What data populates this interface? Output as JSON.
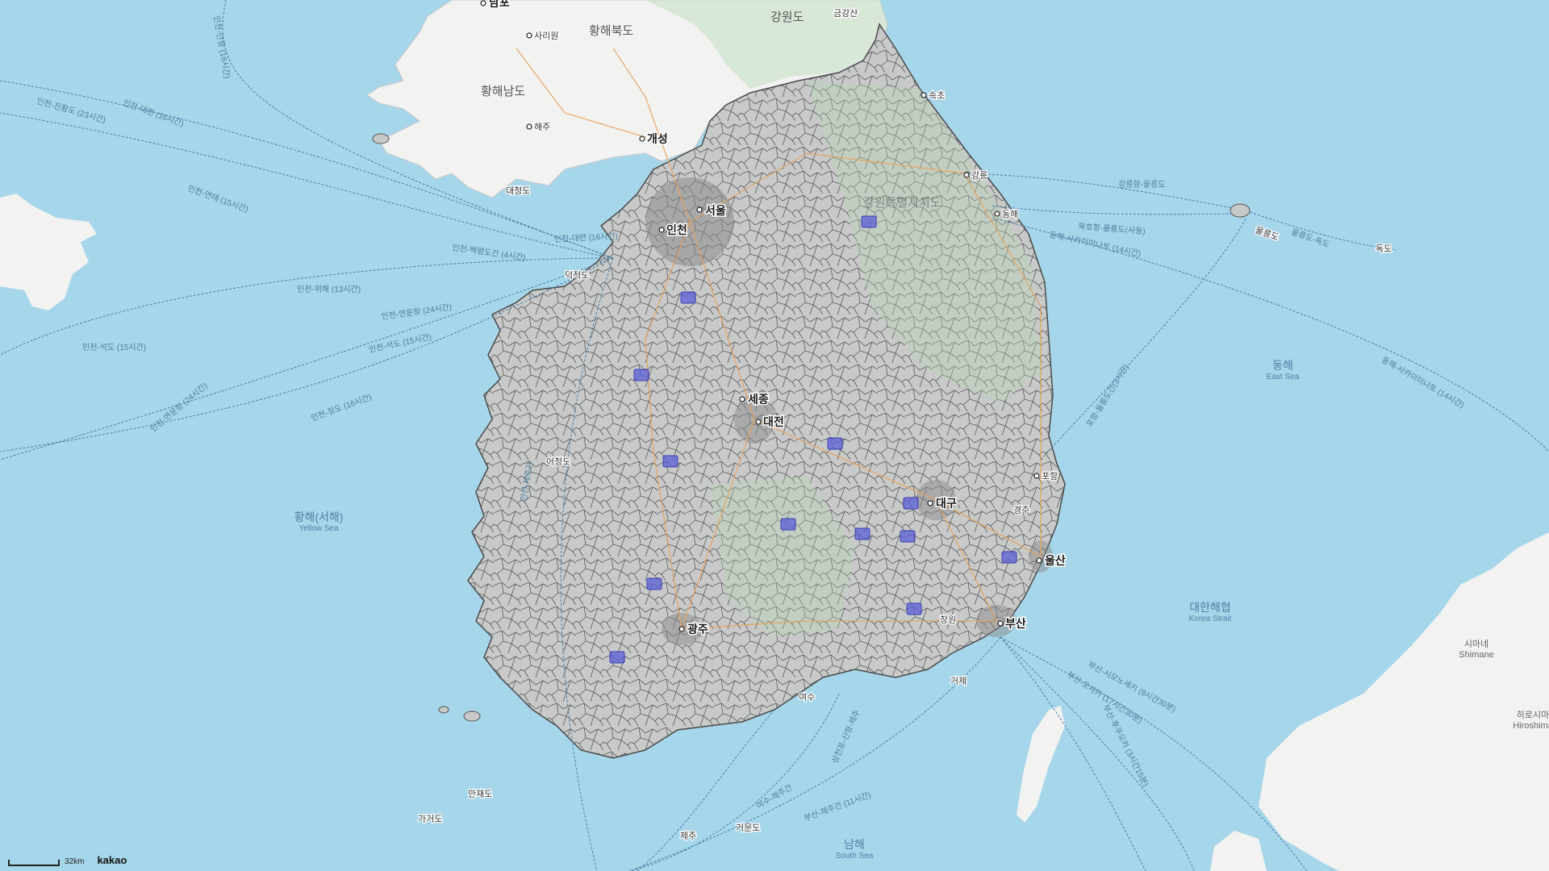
{
  "map": {
    "provider_logo": "kakao",
    "scale_label": "32km",
    "colors": {
      "sea": "#a6d6ea",
      "north_land": "#f2f2f1",
      "south_land": "#c8cac9",
      "district_border": "#555555",
      "road": "#e8a25a",
      "ferry_route": "#3f77a0",
      "cctv_marker": "#5c5fd6"
    },
    "provinces": [
      "황해북도",
      "강원도",
      "황해남도",
      "강원특별자치도"
    ],
    "peaks": [
      "금강산"
    ],
    "north_towns": [
      "남포",
      "사리원",
      "해주",
      "개성"
    ],
    "major_cities": [
      "서울",
      "인천",
      "대전",
      "대구",
      "울산",
      "부산",
      "광주",
      "세종"
    ],
    "towns": [
      "속초",
      "강릉",
      "동해",
      "포항",
      "경주",
      "창원",
      "거제",
      "여수"
    ],
    "islands": [
      "울릉도",
      "독도",
      "어청도",
      "제주",
      "가거도",
      "만재도",
      "거문도",
      "대청도",
      "덕적도"
    ],
    "seas": [
      {
        "name": "동해",
        "sub": "East Sea"
      },
      {
        "name": "황해(서해)",
        "sub": "Yellow Sea"
      },
      {
        "name": "대한해협",
        "sub": "Korea Strait"
      },
      {
        "name": "남해",
        "sub": "South Sea"
      }
    ],
    "japan_places": [
      {
        "name": "시마네",
        "sub": "Shimane"
      },
      {
        "name": "히로시마",
        "sub": "Hiroshima"
      }
    ],
    "ferry_routes": [
      "인천-단둥 (16시간)",
      "인천-대련 (16시간)",
      "인천-진황도 (23시간)",
      "인천-연태 (15시간)",
      "인천-대련 (16시간)",
      "인천-백령도간 (4시간)",
      "인천-위해 (13시간)",
      "인천-연운항 (24시간)",
      "인천-석도 (15시간)",
      "인천-석도 (15시간)",
      "인천-연운항 (24시간)",
      "인천-청도 (16시간)",
      "인천-제주간",
      "강릉항-울릉도",
      "묵호항-울릉도(사동)",
      "동해-사카이미나토 (14시간)",
      "울릉도-독도",
      "동해-사카이미나토 (14시간)",
      "포항-울릉도간(3시간)",
      "부산-시모노세키 (8시간30분)",
      "부산-오사카 (17시간30분)",
      "부산-후쿠오카 (3시간15분)",
      "삼천포-신항-제주",
      "여수-제주간",
      "부산-제주간 (11시간)"
    ]
  }
}
